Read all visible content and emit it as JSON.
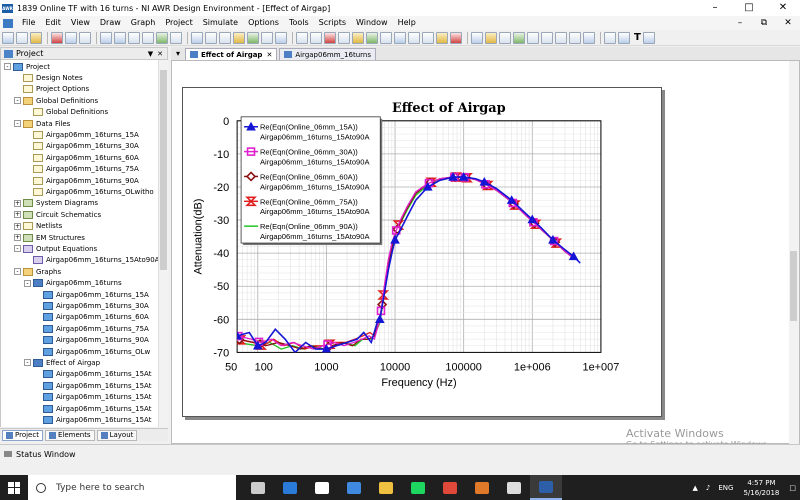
{
  "window": {
    "title": "1839 Online TF with 16 turns - NI AWR Design Environment - [Effect of Airgap]"
  },
  "menu": [
    "File",
    "Edit",
    "View",
    "Draw",
    "Graph",
    "Project",
    "Simulate",
    "Options",
    "Tools",
    "Scripts",
    "Window",
    "Help"
  ],
  "toolbar": {
    "text_label": "T"
  },
  "project_panel": {
    "title": "Project",
    "tree": [
      {
        "label": "Project",
        "level": 0,
        "exp": "-",
        "icon": "grfb"
      },
      {
        "label": "Design Notes",
        "level": 1,
        "exp": "",
        "icon": "doc"
      },
      {
        "label": "Project Options",
        "level": 1,
        "exp": "",
        "icon": "doc"
      },
      {
        "label": "Global Definitions",
        "level": 1,
        "exp": "-",
        "icon": "fld"
      },
      {
        "label": "Global Definitions",
        "level": 2,
        "exp": "",
        "icon": "doc"
      },
      {
        "label": "Data Files",
        "level": 1,
        "exp": "-",
        "icon": "fld"
      },
      {
        "label": "Airgap06mm_16turns_15A",
        "level": 2,
        "exp": "",
        "icon": "doc"
      },
      {
        "label": "Airgap06mm_16turns_30A",
        "level": 2,
        "exp": "",
        "icon": "doc"
      },
      {
        "label": "Airgap06mm_16turns_60A",
        "level": 2,
        "exp": "",
        "icon": "doc"
      },
      {
        "label": "Airgap06mm_16turns_75A",
        "level": 2,
        "exp": "",
        "icon": "doc"
      },
      {
        "label": "Airgap06mm_16turns_90A",
        "level": 2,
        "exp": "",
        "icon": "doc"
      },
      {
        "label": "Airgap06mm_16turns_OLwitho",
        "level": 2,
        "exp": "",
        "icon": "doc"
      },
      {
        "label": "System Diagrams",
        "level": 1,
        "exp": "+",
        "icon": "sch"
      },
      {
        "label": "Circuit Schematics",
        "level": 1,
        "exp": "+",
        "icon": "sch"
      },
      {
        "label": "Netlists",
        "level": 1,
        "exp": "+",
        "icon": "doc"
      },
      {
        "label": "EM Structures",
        "level": 1,
        "exp": "+",
        "icon": "sch"
      },
      {
        "label": "Output Equations",
        "level": 1,
        "exp": "-",
        "icon": "eqn"
      },
      {
        "label": "Airgap06mm_16turns_15Ato90A",
        "level": 2,
        "exp": "",
        "icon": "eqn"
      },
      {
        "label": "Graphs",
        "level": 1,
        "exp": "-",
        "icon": "fld"
      },
      {
        "label": "Airgap06mm_16turns",
        "level": 2,
        "exp": "-",
        "icon": "grf"
      },
      {
        "label": "Airgap06mm_16turns_15A",
        "level": 3,
        "exp": "",
        "icon": "grfb"
      },
      {
        "label": "Airgap06mm_16turns_30A",
        "level": 3,
        "exp": "",
        "icon": "grfb"
      },
      {
        "label": "Airgap06mm_16turns_60A",
        "level": 3,
        "exp": "",
        "icon": "grfb"
      },
      {
        "label": "Airgap06mm_16turns_75A",
        "level": 3,
        "exp": "",
        "icon": "grfb"
      },
      {
        "label": "Airgap06mm_16turns_90A",
        "level": 3,
        "exp": "",
        "icon": "grfb"
      },
      {
        "label": "Airgap06mm_16turns_OLw",
        "level": 3,
        "exp": "",
        "icon": "grfb"
      },
      {
        "label": "Effect of Airgap",
        "level": 2,
        "exp": "-",
        "icon": "grf"
      },
      {
        "label": "Airgap06mm_16turns_15At",
        "level": 3,
        "exp": "",
        "icon": "grfb"
      },
      {
        "label": "Airgap06mm_16turns_15At",
        "level": 3,
        "exp": "",
        "icon": "grfb"
      },
      {
        "label": "Airgap06mm_16turns_15At",
        "level": 3,
        "exp": "",
        "icon": "grfb"
      },
      {
        "label": "Airgap06mm_16turns_15At",
        "level": 3,
        "exp": "",
        "icon": "grfb"
      },
      {
        "label": "Airgap06mm_16turns_15At",
        "level": 3,
        "exp": "",
        "icon": "grfb"
      }
    ],
    "tabs": [
      "Project",
      "Elements",
      "Layout"
    ]
  },
  "doc_tabs": [
    {
      "label": "Effect of Airgap",
      "active": true
    },
    {
      "label": "Airgap06mm_16turns",
      "active": false
    }
  ],
  "chart_data": {
    "type": "line",
    "title": "Effect of Airgap",
    "xlabel": "Frequency (Hz)",
    "ylabel": "Attenuation(dB)",
    "xscale": "log",
    "xlim": [
      50,
      10000000
    ],
    "ylim": [
      -70,
      0
    ],
    "yticks": [
      0,
      -10,
      -20,
      -30,
      -40,
      -50,
      -60,
      -70
    ],
    "xticks": [
      {
        "v": 50,
        "label": "50"
      },
      {
        "v": 100,
        "label": "100"
      },
      {
        "v": 1000,
        "label": "1000"
      },
      {
        "v": 10000,
        "label": "10000"
      },
      {
        "v": 100000,
        "label": "100000"
      },
      {
        "v": 1000000,
        "label": "1e+006"
      },
      {
        "v": 10000000,
        "label": "1e+007"
      }
    ],
    "legend_position": "top-left",
    "series": [
      {
        "name": "Re(Eqn(Online_06mm_15A))",
        "desc": "Airgap06mm_16turns_15Ato90A",
        "color": "#1515d6",
        "marker": "triangle",
        "points": [
          [
            50,
            -65
          ],
          [
            75,
            -64
          ],
          [
            100,
            -68
          ],
          [
            130,
            -67
          ],
          [
            180,
            -63
          ],
          [
            250,
            -66
          ],
          [
            350,
            -70
          ],
          [
            500,
            -67
          ],
          [
            700,
            -69
          ],
          [
            1000,
            -69
          ],
          [
            1400,
            -68
          ],
          [
            2000,
            -67
          ],
          [
            2800,
            -66
          ],
          [
            3500,
            -64
          ],
          [
            4500,
            -67
          ],
          [
            5500,
            -61
          ],
          [
            6000,
            -60
          ],
          [
            7000,
            -52
          ],
          [
            8000,
            -45
          ],
          [
            9000,
            -40
          ],
          [
            10000,
            -36
          ],
          [
            12000,
            -33
          ],
          [
            15000,
            -29
          ],
          [
            20000,
            -24
          ],
          [
            30000,
            -20
          ],
          [
            45000,
            -18
          ],
          [
            70000,
            -17
          ],
          [
            100000,
            -17
          ],
          [
            150000,
            -17.5
          ],
          [
            200000,
            -18.5
          ],
          [
            300000,
            -20.5
          ],
          [
            500000,
            -24
          ],
          [
            800000,
            -28
          ],
          [
            1300000,
            -32
          ],
          [
            2000000,
            -36
          ],
          [
            3000000,
            -39
          ],
          [
            4000000,
            -41
          ],
          [
            5000000,
            -43
          ]
        ]
      },
      {
        "name": "Re(Eqn(Online_06mm_30A))",
        "desc": "Airgap06mm_16turns_15Ato90A",
        "color": "#e020d0",
        "marker": "square",
        "points": [
          [
            50,
            -65
          ],
          [
            80,
            -66
          ],
          [
            110,
            -67
          ],
          [
            160,
            -66
          ],
          [
            220,
            -68
          ],
          [
            320,
            -67
          ],
          [
            450,
            -68
          ],
          [
            650,
            -69
          ],
          [
            900,
            -68
          ],
          [
            1300,
            -67
          ],
          [
            1800,
            -68
          ],
          [
            2500,
            -67
          ],
          [
            3300,
            -66
          ],
          [
            4200,
            -65
          ],
          [
            5000,
            -66
          ],
          [
            6000,
            -60
          ],
          [
            7000,
            -50
          ],
          [
            8000,
            -42
          ],
          [
            9000,
            -37
          ],
          [
            10000,
            -34
          ],
          [
            12000,
            -30
          ],
          [
            15000,
            -26
          ],
          [
            20000,
            -21.5
          ],
          [
            30000,
            -19
          ],
          [
            45000,
            -17.5
          ],
          [
            70000,
            -17
          ],
          [
            100000,
            -17
          ],
          [
            150000,
            -17.8
          ],
          [
            200000,
            -19
          ],
          [
            300000,
            -21
          ],
          [
            500000,
            -24.5
          ],
          [
            800000,
            -28.5
          ],
          [
            1300000,
            -32.5
          ],
          [
            2000000,
            -36
          ],
          [
            3000000,
            -39.5
          ],
          [
            4000000,
            -41.5
          ]
        ]
      },
      {
        "name": "Re(Eqn(Online_06mm_60A))",
        "desc": "Airgap06mm_16turns_15Ato90A",
        "color": "#8a1010",
        "marker": "diamond",
        "points": [
          [
            50,
            -66
          ],
          [
            90,
            -67
          ],
          [
            130,
            -68
          ],
          [
            200,
            -67
          ],
          [
            300,
            -68
          ],
          [
            420,
            -69
          ],
          [
            600,
            -68
          ],
          [
            850,
            -69
          ],
          [
            1200,
            -68
          ],
          [
            1700,
            -67
          ],
          [
            2400,
            -68
          ],
          [
            3200,
            -66
          ],
          [
            4100,
            -66
          ],
          [
            5000,
            -65
          ],
          [
            6000,
            -60
          ],
          [
            7000,
            -51
          ],
          [
            8000,
            -43
          ],
          [
            9000,
            -38
          ],
          [
            10000,
            -34.5
          ],
          [
            12000,
            -30.5
          ],
          [
            15000,
            -26.5
          ],
          [
            20000,
            -22
          ],
          [
            30000,
            -19
          ],
          [
            45000,
            -17.5
          ],
          [
            70000,
            -17
          ],
          [
            100000,
            -17
          ],
          [
            150000,
            -17.8
          ],
          [
            200000,
            -19
          ],
          [
            300000,
            -21
          ],
          [
            500000,
            -24.5
          ],
          [
            800000,
            -28.5
          ],
          [
            1300000,
            -32.5
          ],
          [
            2000000,
            -36
          ],
          [
            3000000,
            -39.5
          ],
          [
            4000000,
            -41.5
          ]
        ]
      },
      {
        "name": "Re(Eqn(Online_06mm_75A))",
        "desc": "Airgap06mm_16turns_15Ato90A",
        "color": "#e02020",
        "marker": "hourglass",
        "points": [
          [
            50,
            -66
          ],
          [
            85,
            -67
          ],
          [
            120,
            -68
          ],
          [
            170,
            -66
          ],
          [
            240,
            -68
          ],
          [
            340,
            -67
          ],
          [
            480,
            -69
          ],
          [
            680,
            -68
          ],
          [
            950,
            -68
          ],
          [
            1350,
            -67
          ],
          [
            1900,
            -67
          ],
          [
            2600,
            -66
          ],
          [
            3400,
            -65
          ],
          [
            4300,
            -64
          ],
          [
            5000,
            -65
          ],
          [
            6000,
            -60
          ],
          [
            7000,
            -50
          ],
          [
            8000,
            -42
          ],
          [
            9000,
            -37.5
          ],
          [
            10000,
            -34
          ],
          [
            12000,
            -30
          ],
          [
            15000,
            -26
          ],
          [
            20000,
            -21.5
          ],
          [
            30000,
            -19
          ],
          [
            45000,
            -17.5
          ],
          [
            70000,
            -17
          ],
          [
            100000,
            -17
          ],
          [
            150000,
            -17.8
          ],
          [
            200000,
            -19
          ],
          [
            300000,
            -21
          ],
          [
            500000,
            -24.5
          ],
          [
            800000,
            -28.5
          ],
          [
            1300000,
            -32.5
          ],
          [
            2000000,
            -36
          ],
          [
            3000000,
            -39.5
          ],
          [
            4000000,
            -41.5
          ]
        ]
      },
      {
        "name": "Re(Eqn(Online_06mm_90A))",
        "desc": "Airgap06mm_16turns_15Ato90A",
        "color": "#22c422",
        "marker": "none",
        "points": [
          [
            50,
            -67
          ],
          [
            100,
            -68
          ],
          [
            150,
            -67
          ],
          [
            220,
            -69
          ],
          [
            320,
            -68
          ],
          [
            460,
            -69
          ],
          [
            650,
            -68
          ],
          [
            920,
            -69
          ],
          [
            1300,
            -68
          ],
          [
            1850,
            -67
          ],
          [
            2600,
            -68
          ],
          [
            3400,
            -66
          ],
          [
            4300,
            -66
          ],
          [
            5000,
            -65
          ],
          [
            6000,
            -61
          ],
          [
            7000,
            -52
          ],
          [
            8000,
            -44
          ],
          [
            9000,
            -38.5
          ],
          [
            10000,
            -35
          ],
          [
            12000,
            -31
          ],
          [
            15000,
            -27
          ],
          [
            20000,
            -22.5
          ],
          [
            30000,
            -19.5
          ],
          [
            45000,
            -17.8
          ],
          [
            70000,
            -17.2
          ],
          [
            100000,
            -17
          ],
          [
            150000,
            -17.8
          ],
          [
            200000,
            -19
          ],
          [
            300000,
            -21
          ],
          [
            500000,
            -24.5
          ],
          [
            800000,
            -28.5
          ],
          [
            1300000,
            -32.5
          ],
          [
            2000000,
            -36
          ],
          [
            3000000,
            -39.5
          ],
          [
            4000000,
            -41.5
          ]
        ]
      }
    ]
  },
  "status_bar": {
    "label": "Status Window"
  },
  "activate": {
    "line1": "Activate Windows",
    "line2": "Go to Settings to activate Windows."
  },
  "taskbar": {
    "search_placeholder": "Type here to search",
    "lang": "ENG",
    "time": "4:57 PM",
    "date": "5/16/2018",
    "apps": [
      {
        "name": "task-view",
        "color": "#cccccc"
      },
      {
        "name": "edge",
        "color": "#2a7ad8"
      },
      {
        "name": "store",
        "color": "#ffffff"
      },
      {
        "name": "dropbox",
        "color": "#3f8ae0"
      },
      {
        "name": "explorer",
        "color": "#f0c040"
      },
      {
        "name": "spotify",
        "color": "#1ed760"
      },
      {
        "name": "chrome",
        "color": "#e0483a"
      },
      {
        "name": "matlab",
        "color": "#e07a2a"
      },
      {
        "name": "mail",
        "color": "#dddddd"
      },
      {
        "name": "awr",
        "color": "#2c5fa8"
      }
    ]
  }
}
